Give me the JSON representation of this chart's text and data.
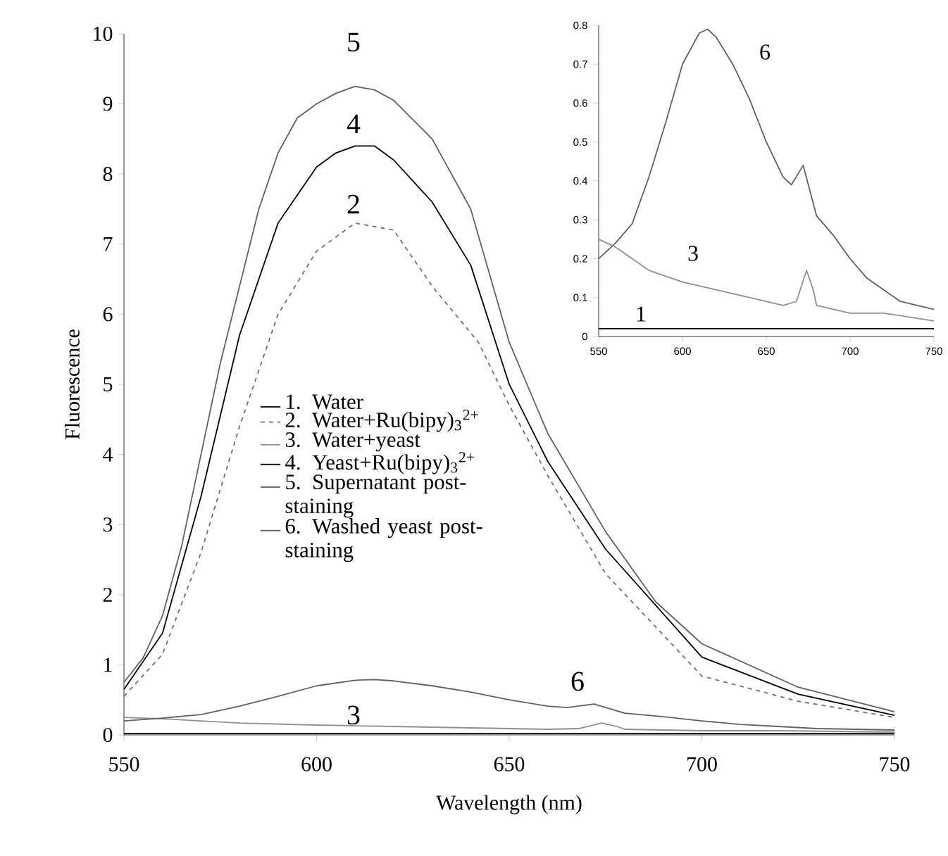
{
  "chart_data": [
    {
      "type": "line",
      "xlabel": "Wavelength (nm)",
      "ylabel": "Fluorescence",
      "xlim": [
        550,
        750
      ],
      "ylim": [
        0,
        10
      ],
      "xticks": [
        550,
        600,
        650,
        700,
        750
      ],
      "yticks": [
        0,
        1,
        2,
        3,
        4,
        5,
        6,
        7,
        8,
        9,
        10
      ],
      "legend": "center left",
      "series": [
        {
          "name": "1. Water",
          "color": "#000000",
          "x": [
            550,
            575,
            600,
            625,
            650,
            675,
            700,
            725,
            750
          ],
          "values": [
            0.02,
            0.02,
            0.02,
            0.02,
            0.02,
            0.02,
            0.02,
            0.02,
            0.02
          ]
        },
        {
          "name": "2. Water+Ru(bipy)$_{3}$$^{2+}$",
          "color": "#707070",
          "line_style": "dashed",
          "x": [
            550,
            560,
            570,
            580,
            590,
            600,
            610,
            620,
            630,
            642,
            650,
            660,
            675,
            700,
            725,
            750
          ],
          "values": [
            0.55,
            1.15,
            2.6,
            4.4,
            6.0,
            6.9,
            7.3,
            7.2,
            6.4,
            5.6,
            4.7,
            3.7,
            2.3,
            0.84,
            0.48,
            0.25
          ]
        },
        {
          "name": "3. Water+yeast",
          "color": "#909090",
          "x": [
            550,
            560,
            570,
            580,
            600,
            620,
            640,
            660,
            668,
            674,
            678,
            680,
            700,
            720,
            750
          ],
          "values": [
            0.25,
            0.23,
            0.2,
            0.17,
            0.14,
            0.12,
            0.1,
            0.08,
            0.09,
            0.17,
            0.12,
            0.08,
            0.06,
            0.06,
            0.04
          ]
        },
        {
          "name": "4. Yeast+Ru(bipy)$_{3}$$^{2+}$",
          "color": "#000000",
          "x": [
            550,
            560,
            570,
            580,
            590,
            600,
            605,
            610,
            615,
            620,
            630,
            640,
            650,
            660,
            675,
            700,
            725,
            750
          ],
          "values": [
            0.65,
            1.45,
            3.4,
            5.7,
            7.3,
            8.1,
            8.3,
            8.4,
            8.4,
            8.2,
            7.6,
            6.7,
            5.0,
            3.9,
            2.65,
            1.11,
            0.58,
            0.28
          ]
        },
        {
          "name": "5. Supernatant post-staining",
          "color": "#606060",
          "x": [
            550,
            555,
            560,
            565,
            570,
            575,
            580,
            585,
            590,
            595,
            600,
            605,
            610,
            615,
            620,
            630,
            640,
            650,
            660,
            675,
            688,
            700,
            725,
            750
          ],
          "values": [
            0.75,
            1.1,
            1.7,
            2.7,
            4.0,
            5.3,
            6.4,
            7.5,
            8.3,
            8.8,
            9.0,
            9.15,
            9.25,
            9.2,
            9.05,
            8.5,
            7.5,
            5.6,
            4.3,
            2.9,
            1.9,
            1.3,
            0.68,
            0.33
          ]
        },
        {
          "name": "6. Washed yeast post-staining",
          "color": "#606060",
          "x": [
            550,
            560,
            570,
            580,
            590,
            600,
            605,
            610,
            615,
            620,
            630,
            640,
            650,
            660,
            665,
            672,
            680,
            690,
            700,
            710,
            720,
            730,
            740,
            750
          ],
          "values": [
            0.2,
            0.24,
            0.29,
            0.41,
            0.55,
            0.7,
            0.74,
            0.78,
            0.79,
            0.77,
            0.7,
            0.61,
            0.5,
            0.41,
            0.39,
            0.44,
            0.31,
            0.26,
            0.2,
            0.15,
            0.12,
            0.09,
            0.08,
            0.07
          ]
        }
      ],
      "annotations": [
        "5",
        "4",
        "2",
        "3",
        "6"
      ]
    },
    {
      "type": "line",
      "xlim": [
        550,
        750
      ],
      "ylim": [
        0,
        0.8
      ],
      "xticks": [
        550,
        600,
        650,
        700,
        750
      ],
      "yticks": [
        0,
        0.1,
        0.2,
        0.3,
        0.4,
        0.5,
        0.6,
        0.7,
        0.8
      ],
      "series": [
        {
          "color": "#606060",
          "x": [
            550,
            560,
            570,
            580,
            590,
            600,
            605,
            610,
            615,
            620,
            630,
            640,
            650,
            660,
            665,
            672,
            680,
            690,
            700,
            710,
            720,
            730,
            740,
            750
          ],
          "values": [
            0.2,
            0.24,
            0.29,
            0.41,
            0.55,
            0.7,
            0.74,
            0.78,
            0.79,
            0.77,
            0.7,
            0.61,
            0.5,
            0.41,
            0.39,
            0.44,
            0.31,
            0.26,
            0.2,
            0.15,
            0.12,
            0.09,
            0.08,
            0.07
          ]
        },
        {
          "color": "#909090",
          "x": [
            550,
            560,
            570,
            580,
            600,
            620,
            640,
            660,
            668,
            674,
            678,
            680,
            700,
            720,
            750
          ],
          "values": [
            0.25,
            0.23,
            0.2,
            0.17,
            0.14,
            0.12,
            0.1,
            0.08,
            0.09,
            0.17,
            0.12,
            0.08,
            0.06,
            0.06,
            0.04
          ]
        },
        {
          "color": "#000000",
          "x": [
            550,
            575,
            600,
            625,
            650,
            675,
            700,
            725,
            750
          ],
          "values": [
            0.02,
            0.02,
            0.02,
            0.02,
            0.02,
            0.02,
            0.02,
            0.02,
            0.02
          ]
        }
      ],
      "annotations": [
        "6",
        "3",
        "1"
      ]
    }
  ]
}
